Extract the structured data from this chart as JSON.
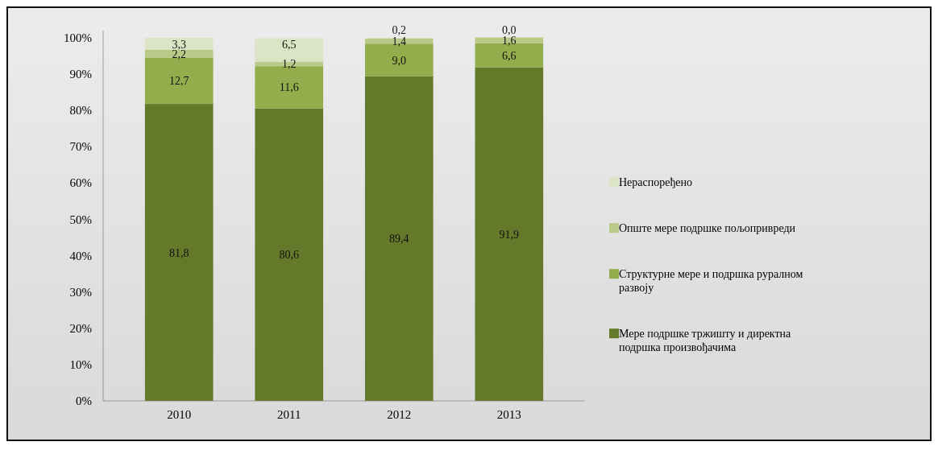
{
  "chart_data": {
    "type": "bar",
    "stacked": true,
    "categories": [
      "2010",
      "2011",
      "2012",
      "2013"
    ],
    "series": [
      {
        "name": "Мере подршке тржишту и директна подршка произвођачима",
        "color": "#647a2a",
        "values": [
          81.8,
          80.6,
          89.4,
          91.9
        ],
        "value_labels": [
          "81,8",
          "80,6",
          "89,4",
          "91,9"
        ]
      },
      {
        "name": "Структурне мере и подршка руралном развоју",
        "color": "#94ad4c",
        "values": [
          12.7,
          11.6,
          9.0,
          6.6
        ],
        "value_labels": [
          "12,7",
          "11,6",
          "9,0",
          "6,6"
        ]
      },
      {
        "name": "Опште мере подршке пољопривреди",
        "color": "#b9c987",
        "values": [
          2.2,
          1.2,
          1.4,
          1.6
        ],
        "value_labels": [
          "2,2",
          "1,2",
          "1,4",
          "1,6"
        ]
      },
      {
        "name": "Нераспоређено",
        "color": "#dbe4c4",
        "values": [
          3.3,
          6.5,
          0.2,
          0.0
        ],
        "value_labels": [
          "3,3",
          "6,5",
          "0,2",
          "0,0"
        ]
      }
    ],
    "ylim": [
      0,
      102
    ],
    "yticks": [
      {
        "value": 0,
        "label": "0%"
      },
      {
        "value": 10,
        "label": "10%"
      },
      {
        "value": 20,
        "label": "20%"
      },
      {
        "value": 30,
        "label": "30%"
      },
      {
        "value": 40,
        "label": "40%"
      },
      {
        "value": 50,
        "label": "50%"
      },
      {
        "value": 60,
        "label": "60%"
      },
      {
        "value": 70,
        "label": "70%"
      },
      {
        "value": 80,
        "label": "80%"
      },
      {
        "value": 90,
        "label": "90%"
      },
      {
        "value": 100,
        "label": "100%"
      }
    ],
    "grid": false,
    "legend": "right"
  }
}
